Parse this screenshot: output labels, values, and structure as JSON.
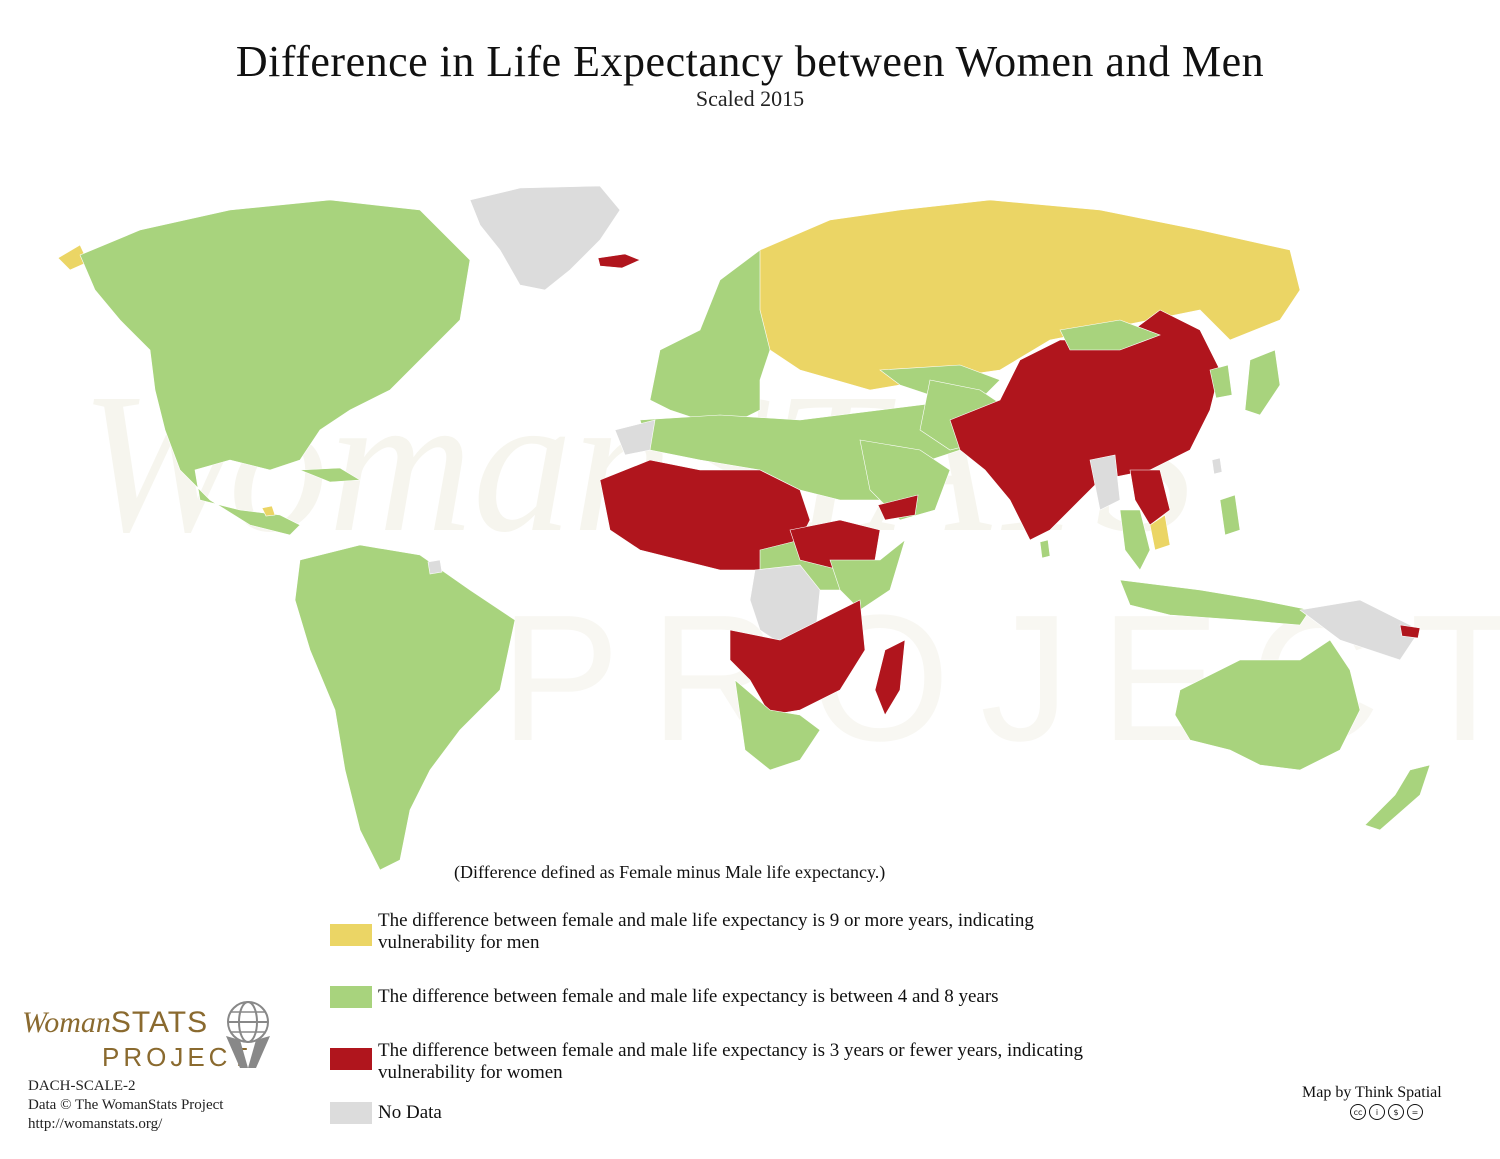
{
  "title": "Difference in Life Expectancy between Women and Men",
  "subtitle": "Scaled 2015",
  "note": "(Difference defined as Female minus Male life expectancy.)",
  "colors": {
    "men_vulnerable": "#EBD565",
    "moderate": "#A8D37D",
    "women_vulnerable": "#B0151D",
    "no_data": "#DCDCDC",
    "ocean": "#FFFFFF",
    "logo": "#8A6A2F"
  },
  "legend": [
    {
      "key": "men_vulnerable",
      "text": "The difference between female and male life expectancy is 9 or more years, indicating vulnerability for men",
      "color": "#EBD565"
    },
    {
      "key": "moderate",
      "text": "The difference between female and male life expectancy is between 4 and 8 years",
      "color": "#A8D37D"
    },
    {
      "key": "women_vulnerable",
      "text": "The difference between female and male life expectancy is 3 years or fewer years, indicating vulnerability for women",
      "color": "#B0151D"
    },
    {
      "key": "no_data",
      "text": "No Data",
      "color": "#DCDCDC"
    }
  ],
  "logo": {
    "woman": "Woman",
    "stats": "STATS",
    "project": "PROJECT"
  },
  "credits": {
    "code": "DACH-SCALE-2",
    "data": "Data © The WomanStats Project",
    "url": "http://womanstats.org/",
    "map_by": "Map by Think Spatial",
    "license_icons": [
      "cc-icon",
      "by-icon",
      "nc-icon",
      "nd-icon"
    ]
  },
  "watermark": {
    "line1": "WomanSTATS",
    "line2": "PROJECT"
  }
}
